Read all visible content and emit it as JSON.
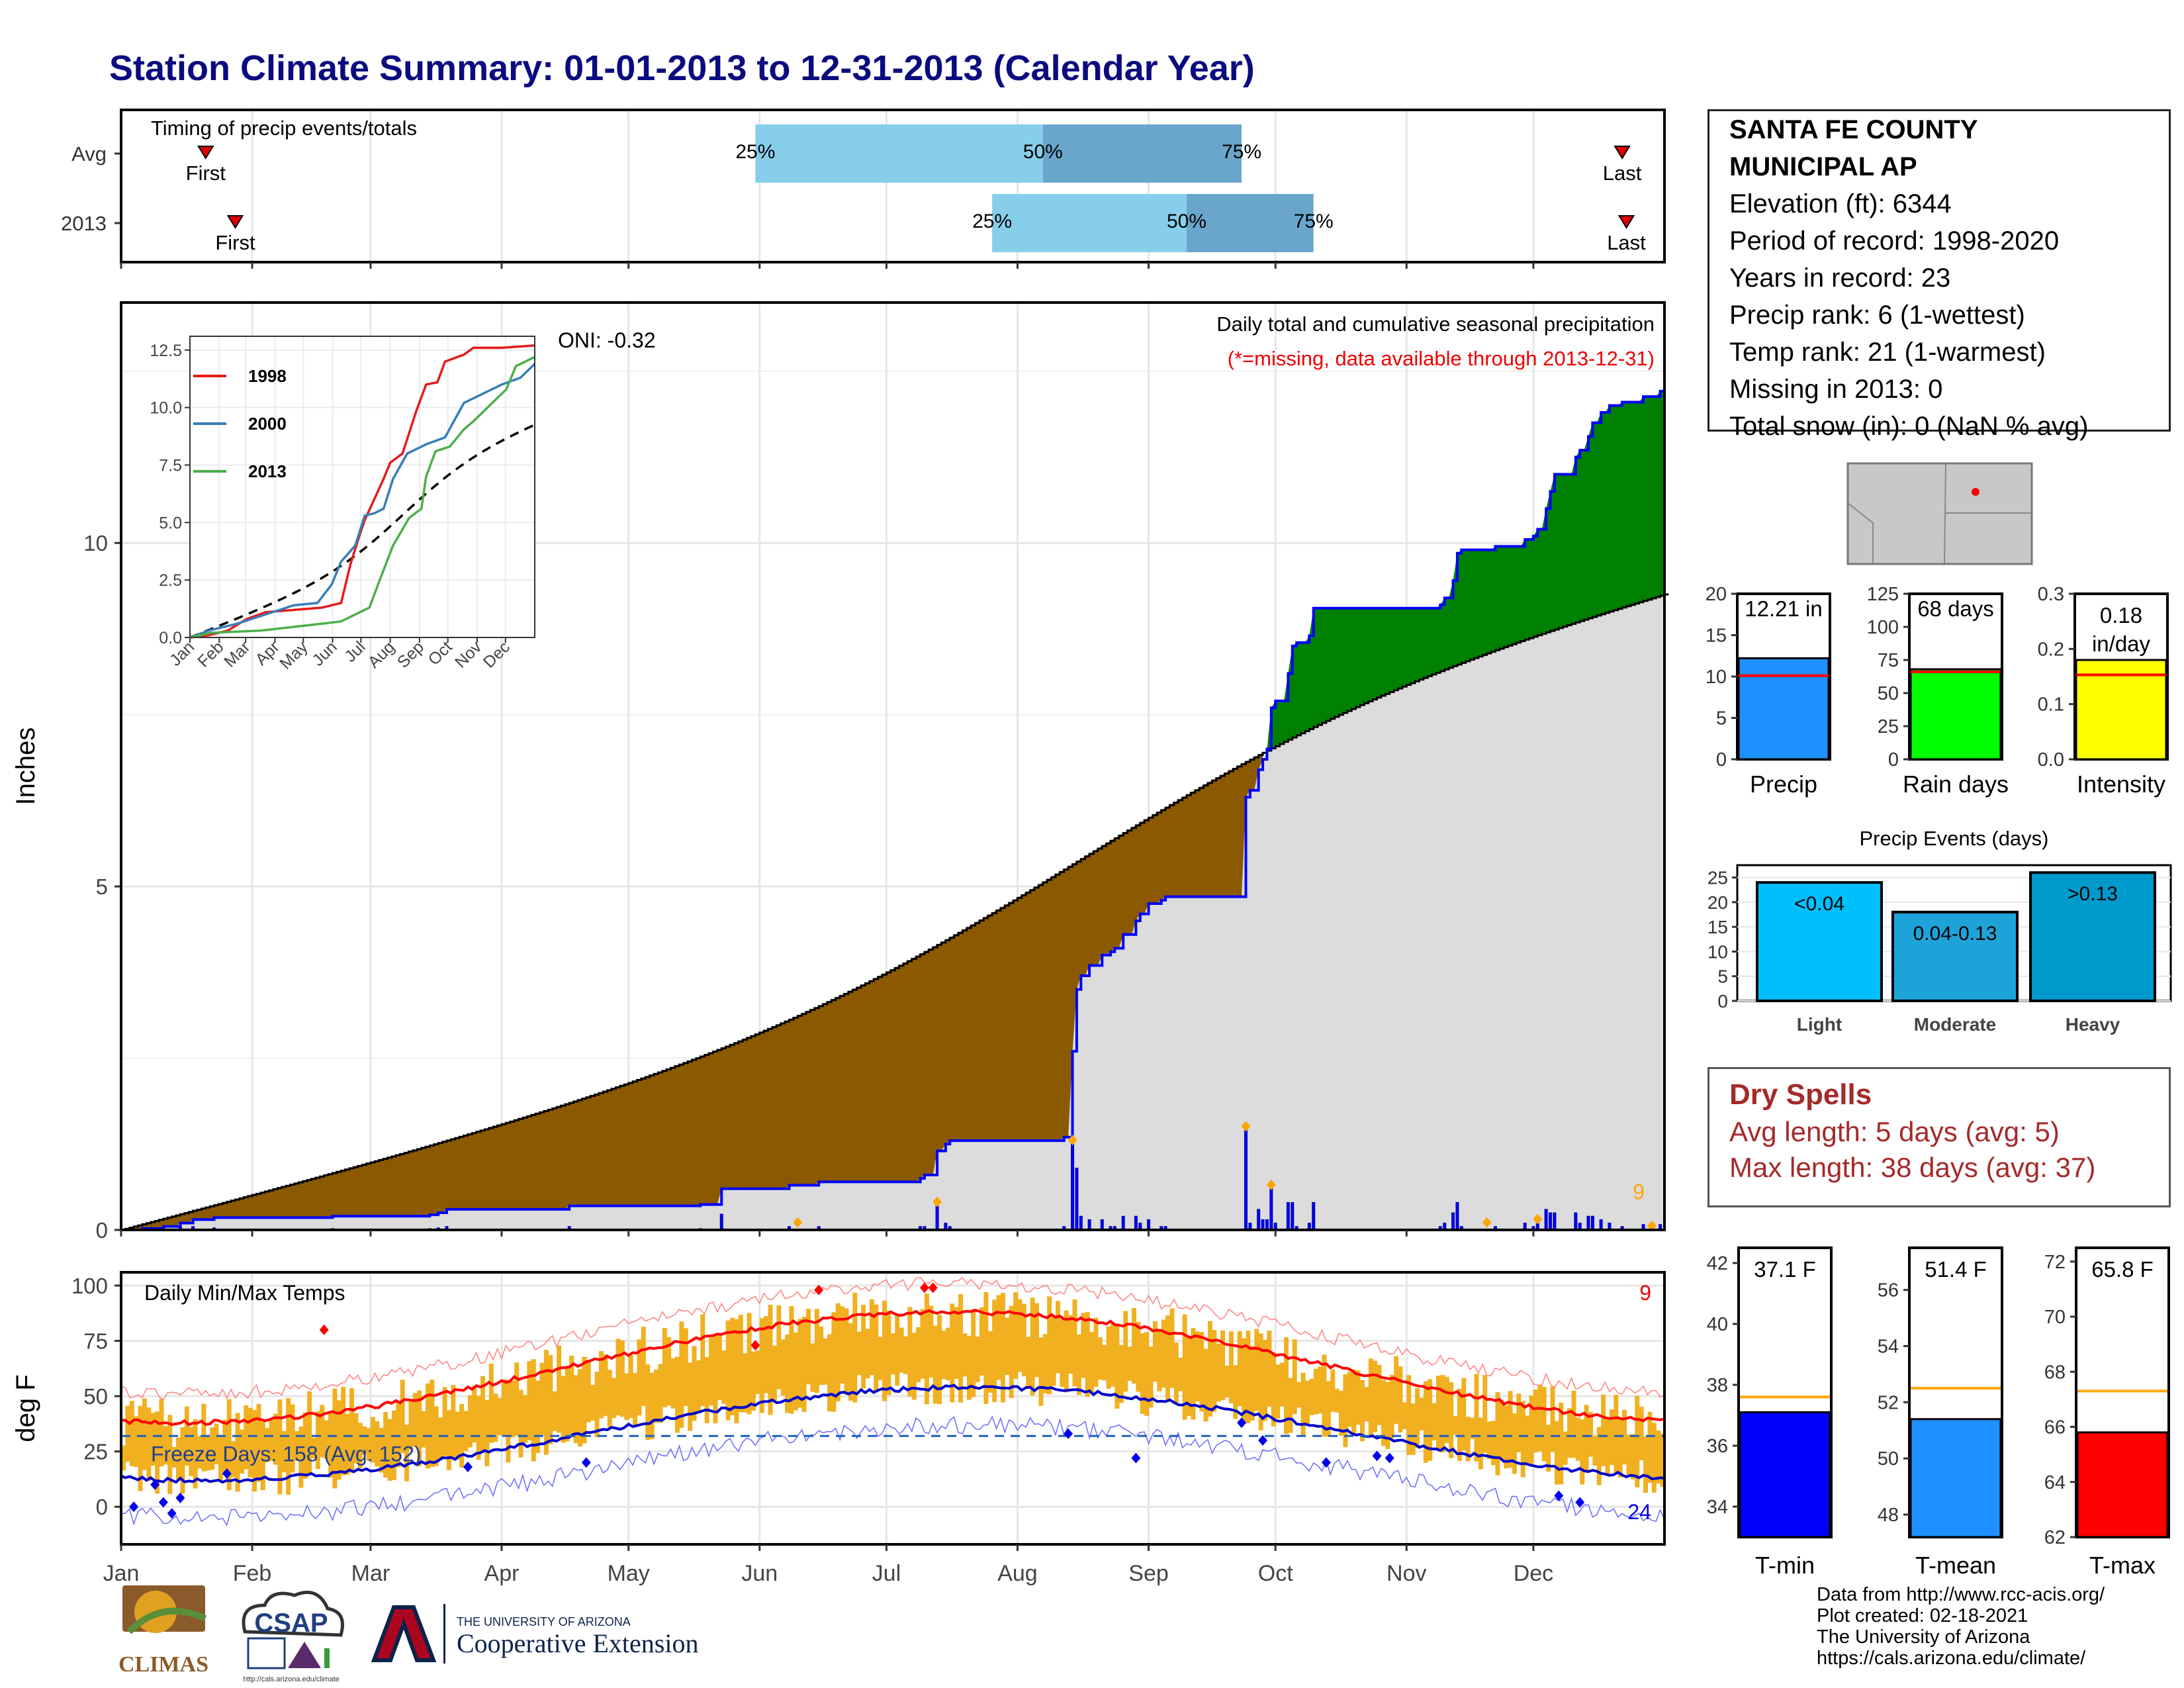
{
  "title": "Station Climate Summary: 01-01-2013 to 12-31-2013 (Calendar Year)",
  "colors": {
    "title": "#0b0b80",
    "cum_avg_fill": "#dcdcdc",
    "deficit_fill": "#8b5a00",
    "surplus_fill": "#008000",
    "observed_line": "#0000ff",
    "timing_light": "#87ceeb",
    "timing_dark": "#6aa6cc",
    "temp_bar": "#f0b020",
    "tmax_line": "#ff0000",
    "tmin_line": "#0000cc",
    "dryspell": "#a52a2a"
  },
  "station": {
    "name_line1": "SANTA FE COUNTY",
    "name_line2": "MUNICIPAL AP",
    "elevation": "Elevation (ft): 6344",
    "period": "Period of record: 1998-2020",
    "years": "Years in record: 23",
    "precip_rank": "Precip rank: 6 (1-wettest)",
    "temp_rank": "Temp rank: 21 (1-warmest)",
    "missing": "Missing in 2013: 0",
    "snow": "Total snow (in): 0 (NaN % avg)"
  },
  "timing_panel": {
    "label": "Timing of precip events/totals",
    "rows": [
      {
        "name": "Avg",
        "first_label": "First",
        "last_label": "Last",
        "first_doy": 20,
        "last_doy": 355,
        "p25": 150,
        "p50": 218,
        "p75": 265,
        "labels": [
          "25%",
          "50%",
          "75%"
        ]
      },
      {
        "name": "2013",
        "first_label": "First",
        "last_label": "Last",
        "first_doy": 27,
        "last_doy": 356,
        "p25": 206,
        "p50": 252,
        "p75": 282,
        "labels": [
          "25%",
          "50%",
          "75%"
        ]
      }
    ]
  },
  "precip_panel": {
    "ylabel": "Inches",
    "yticks": [
      0,
      5,
      10
    ],
    "ylim": [
      0,
      13.5
    ],
    "note": "Daily total and cumulative seasonal precipitation",
    "missing_note": "(*=missing, data available through 2013-12-31)",
    "oni": "ONI: -0.32",
    "count_label": "9"
  },
  "inset": {
    "yticks": [
      "0.0",
      "2.5",
      "5.0",
      "7.5",
      "10.0",
      "12.5"
    ],
    "xticks": [
      "Jan",
      "Feb",
      "Mar",
      "Apr",
      "May",
      "Jun",
      "Jul",
      "Aug",
      "Sep",
      "Oct",
      "Nov",
      "Dec"
    ],
    "legend": [
      {
        "name": "1998",
        "color": "#e41a1c"
      },
      {
        "name": "2000",
        "color": "#377eb8"
      },
      {
        "name": "2013",
        "color": "#4daf4a"
      }
    ]
  },
  "temp_panel": {
    "label": "Daily Min/Max Temps",
    "ylabel": "deg F",
    "yticks": [
      0,
      25,
      50,
      75,
      100
    ],
    "freeze_label": "Freeze Days: 158 (Avg: 152)",
    "freeze_line": 32,
    "max_count": "9",
    "min_count": "24"
  },
  "months": [
    "Jan",
    "Feb",
    "Mar",
    "Apr",
    "May",
    "Jun",
    "Jul",
    "Aug",
    "Sep",
    "Oct",
    "Nov",
    "Dec"
  ],
  "summary_bars": [
    {
      "label": "Precip",
      "value": 12.21,
      "avg": 10.1,
      "text": "12.21 in",
      "max": 20,
      "ticks": [
        0,
        5,
        10,
        15,
        20
      ],
      "color": "#1e90ff"
    },
    {
      "label": "Rain days",
      "value": 68,
      "avg": 66,
      "text": "68 days",
      "max": 125,
      "ticks": [
        0,
        25,
        50,
        75,
        100,
        125
      ],
      "color": "#00ff00"
    },
    {
      "label": "Intensity",
      "value": 0.18,
      "avg": 0.153,
      "text": "0.18 in/day",
      "max": 0.3,
      "ticks": [
        "0.0",
        "0.1",
        "0.2",
        "0.3"
      ],
      "color": "#ffff00"
    }
  ],
  "events_panel": {
    "title": "Precip Events (days)",
    "categories": [
      "Light",
      "Moderate",
      "Heavy"
    ],
    "values": [
      24,
      18,
      26
    ],
    "labels": [
      "<0.04",
      "0.04-0.13",
      ">0.13"
    ],
    "colors": [
      "#00bfff",
      "#1ea3d9",
      "#0099cc"
    ],
    "yticks": [
      0,
      5,
      10,
      15,
      20,
      25
    ]
  },
  "dry_spells": {
    "title": "Dry Spells",
    "avg": "Avg length: 5 days (avg: 5)",
    "max": "Max length: 38 days (avg: 37)"
  },
  "temp_bars": [
    {
      "label": "T-min",
      "value": 37.1,
      "avg": 37.6,
      "text": "37.1 F",
      "min": 33,
      "max": 42.5,
      "ticks": [
        34,
        36,
        38,
        40,
        42
      ],
      "color": "#0000ff"
    },
    {
      "label": "T-mean",
      "value": 51.4,
      "avg": 52.5,
      "text": "51.4 F",
      "min": 47.2,
      "max": 57.5,
      "ticks": [
        48,
        50,
        52,
        54,
        56
      ],
      "color": "#1e90ff"
    },
    {
      "label": "T-max",
      "value": 65.8,
      "avg": 67.3,
      "text": "65.8 F",
      "min": 62,
      "max": 72.5,
      "ticks": [
        62,
        64,
        66,
        68,
        70,
        72
      ],
      "color": "#ff0000"
    }
  ],
  "credits": {
    "line1": "Data from http://www.rcc-acis.org/",
    "line2": "Plot created: 02-18-2021",
    "line3": "The University of Arizona",
    "line4": "https://cals.arizona.edu/climate/"
  },
  "logos": {
    "climas": "CLIMAS",
    "csap": "CSAP",
    "csap_url": "http://cals.arizona.edu/climate",
    "ua_top": "THE UNIVERSITY OF ARIZONA",
    "ua_bottom": "Cooperative Extension"
  }
}
